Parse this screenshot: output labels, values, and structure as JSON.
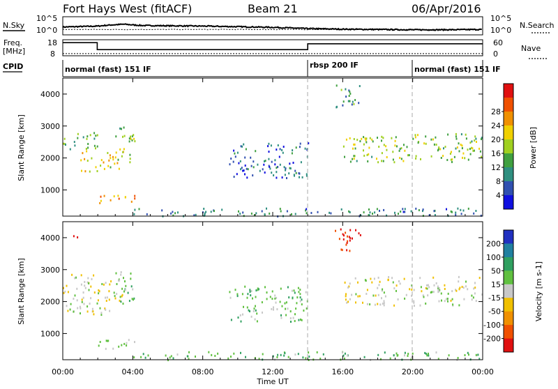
{
  "header": {
    "radar": "Fort Hays West (fitACF)",
    "beam": "Beam 21",
    "date": "06/Apr/2016"
  },
  "strip_labels": {
    "nsky": "N.Sky",
    "nsearch": "N.Search",
    "freq_line1": "Freq.",
    "freq_line2": "[MHz]",
    "nave": "Nave",
    "cpid": "CPID"
  },
  "noise_axis": {
    "left_ticks": [
      "10^5",
      "10^0"
    ],
    "right_ticks": [
      "10^5",
      "10^0"
    ]
  },
  "freq_axis": {
    "left_ticks": [
      "18",
      "8"
    ],
    "right_ticks": [
      "60",
      "0"
    ]
  },
  "cpid_segments": [
    {
      "label": "normal (fast) 151 IF",
      "start": 0.0,
      "end": 14.0
    },
    {
      "label": "rbsp 200 IF",
      "start": 14.0,
      "end": 20.0
    },
    {
      "label": "normal (fast) 151 IF",
      "start": 20.0,
      "end": 24.0
    }
  ],
  "xaxis": {
    "label": "Time UT",
    "tick_labels": [
      "00:00",
      "04:00",
      "08:00",
      "12:00",
      "16:00",
      "20:00",
      "00:00"
    ]
  },
  "panels": {
    "power": {
      "ylabel": "Slant Range [km]",
      "ytick_labels": [
        "1000",
        "2000",
        "3000",
        "4000"
      ],
      "cbar_label": "Power [dB]",
      "cbar_ticks": [
        "4",
        "8",
        "12",
        "16",
        "20",
        "24",
        "28"
      ],
      "cbar_colors": [
        "#1010e0",
        "#3050b0",
        "#2f8f80",
        "#40a040",
        "#a0d020",
        "#f0d000",
        "#f09000",
        "#f05000",
        "#e01010"
      ]
    },
    "velocity": {
      "ylabel": "Slant Range [km]",
      "ytick_labels": [
        "1000",
        "2000",
        "3000",
        "4000"
      ],
      "cbar_label": "Velocity [m s-1]",
      "cbar_ticks": [
        "200",
        "100",
        "50",
        "15",
        "-15",
        "-50",
        "-100",
        "-200"
      ],
      "cbar_colors": [
        "#2030c0",
        "#2080a0",
        "#30a060",
        "#60c040",
        "#c8c8c8",
        "#f0c000",
        "#f09000",
        "#f05000",
        "#e01010"
      ]
    }
  },
  "chart_data": [
    {
      "type": "line",
      "title": "N.Sky / N.Search",
      "x_unit": "hours UT",
      "series": [
        {
          "name": "N.Sky",
          "x": [
            0,
            2,
            2.8,
            3.5,
            4.5,
            6,
            8,
            10,
            12,
            14,
            16,
            18,
            20,
            22,
            24
          ],
          "y": [
            2.1,
            2.4,
            2.8,
            3.0,
            2.6,
            2.5,
            2.4,
            2.2,
            2.0,
            1.6,
            1.4,
            1.3,
            1.2,
            1.2,
            1.3
          ]
        }
      ],
      "ylim": [
        0,
        5
      ],
      "yscale": "log10"
    },
    {
      "type": "line",
      "title": "Freq. [MHz] / Nave",
      "x_unit": "hours UT",
      "series": [
        {
          "name": "Freq.",
          "x": [
            0,
            1.97,
            1.97,
            14.0,
            14.0,
            24
          ],
          "y": [
            16.5,
            16.5,
            11.7,
            11.7,
            15.7,
            15.7
          ]
        },
        {
          "name": "Nave",
          "x": [
            0,
            24
          ],
          "y": [
            9,
            9
          ]
        }
      ],
      "ylim": [
        8,
        18
      ]
    },
    {
      "type": "heatmap",
      "title": "Power [dB]",
      "xlabel": "Time UT",
      "ylabel": "Slant Range [km]",
      "xlim": [
        0,
        24
      ],
      "ylim": [
        180,
        4500
      ],
      "zlim": [
        0,
        30
      ],
      "regions": [
        {
          "t0": 0.0,
          "t1": 2.0,
          "r0": 2300,
          "r1": 2900,
          "level": 12
        },
        {
          "t0": 1.0,
          "t1": 3.5,
          "r0": 1600,
          "r1": 2300,
          "level": 18
        },
        {
          "t0": 3.0,
          "t1": 4.1,
          "r0": 1900,
          "r1": 3000,
          "level": 14
        },
        {
          "t0": 2.0,
          "t1": 4.2,
          "r0": 550,
          "r1": 850,
          "level": 22
        },
        {
          "t0": 9.5,
          "t1": 14.0,
          "r0": 1400,
          "r1": 2500,
          "level": 6
        },
        {
          "t0": 16.0,
          "t1": 24.0,
          "r0": 1900,
          "r1": 2800,
          "level": 14
        },
        {
          "t0": 15.5,
          "t1": 17.0,
          "r0": 3600,
          "r1": 4300,
          "level": 10
        },
        {
          "t0": 4.0,
          "t1": 24.0,
          "r0": 200,
          "r1": 450,
          "level": 8
        }
      ]
    },
    {
      "type": "heatmap",
      "title": "Velocity [m s-1]",
      "xlabel": "Time UT",
      "ylabel": "Slant Range [km]",
      "xlim": [
        0,
        24
      ],
      "ylim": [
        180,
        4500
      ],
      "zlim": [
        -200,
        200
      ],
      "regions": [
        {
          "t0": 0.0,
          "t1": 3.5,
          "r0": 1600,
          "r1": 2900,
          "level": 0
        },
        {
          "t0": 3.0,
          "t1": 4.1,
          "r0": 1900,
          "r1": 3000,
          "level": 40
        },
        {
          "t0": 2.0,
          "t1": 4.2,
          "r0": 550,
          "r1": 850,
          "level": 30
        },
        {
          "t0": 0.5,
          "t1": 1.0,
          "r0": 4000,
          "r1": 4200,
          "level": -200
        },
        {
          "t0": 9.5,
          "t1": 14.0,
          "r0": 1400,
          "r1": 2500,
          "level": 30
        },
        {
          "t0": 16.0,
          "t1": 24.0,
          "r0": 1900,
          "r1": 2800,
          "level": 0
        },
        {
          "t0": 15.5,
          "t1": 17.0,
          "r0": 3600,
          "r1": 4300,
          "level": -200
        },
        {
          "t0": 4.0,
          "t1": 24.0,
          "r0": 200,
          "r1": 450,
          "level": 40
        }
      ]
    }
  ]
}
